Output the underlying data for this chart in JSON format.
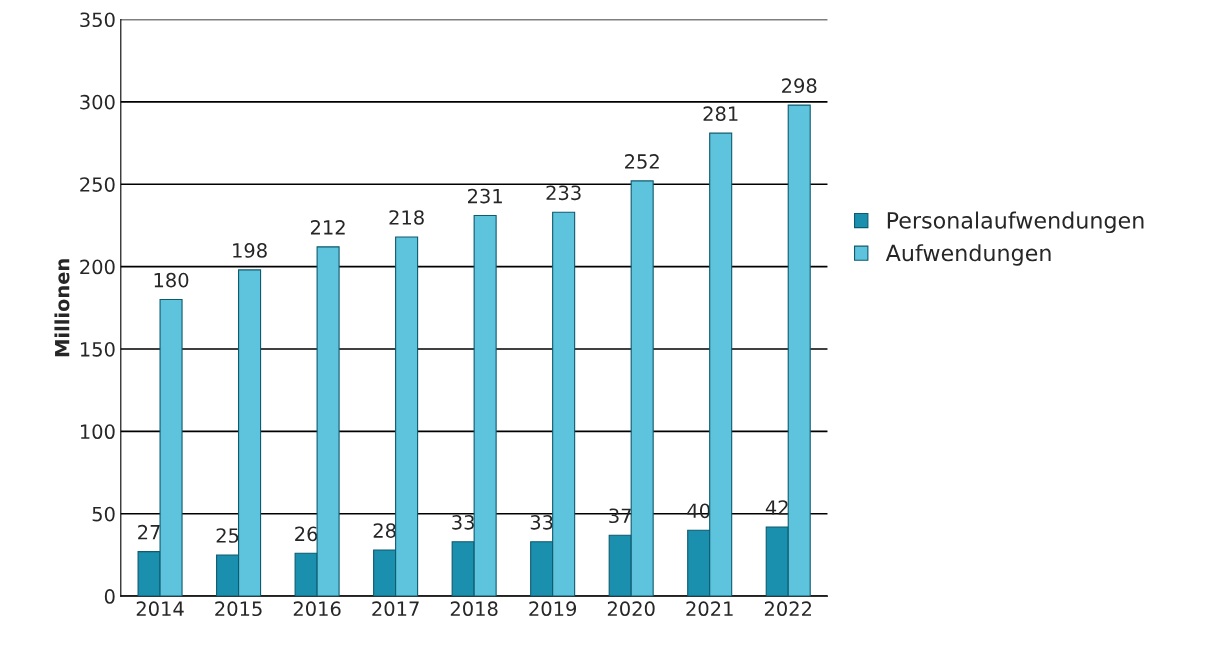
{
  "chart_data": {
    "type": "bar",
    "ylabel": "Millionen",
    "categories": [
      "2014",
      "2015",
      "2016",
      "2017",
      "2018",
      "2019",
      "2020",
      "2021",
      "2022"
    ],
    "series": [
      {
        "name": "Personalaufwendungen",
        "color": "#1b8fae",
        "values": [
          27,
          25,
          26,
          28,
          33,
          33,
          37,
          40,
          42
        ]
      },
      {
        "name": "Aufwendungen",
        "color": "#5ec3dc",
        "values": [
          180,
          198,
          212,
          218,
          231,
          233,
          252,
          281,
          298
        ]
      }
    ],
    "ylim": [
      0,
      350
    ],
    "yticks": [
      0,
      50,
      100,
      150,
      200,
      250,
      300,
      350
    ],
    "grid": "y",
    "legend": "right",
    "data_labels": true
  }
}
